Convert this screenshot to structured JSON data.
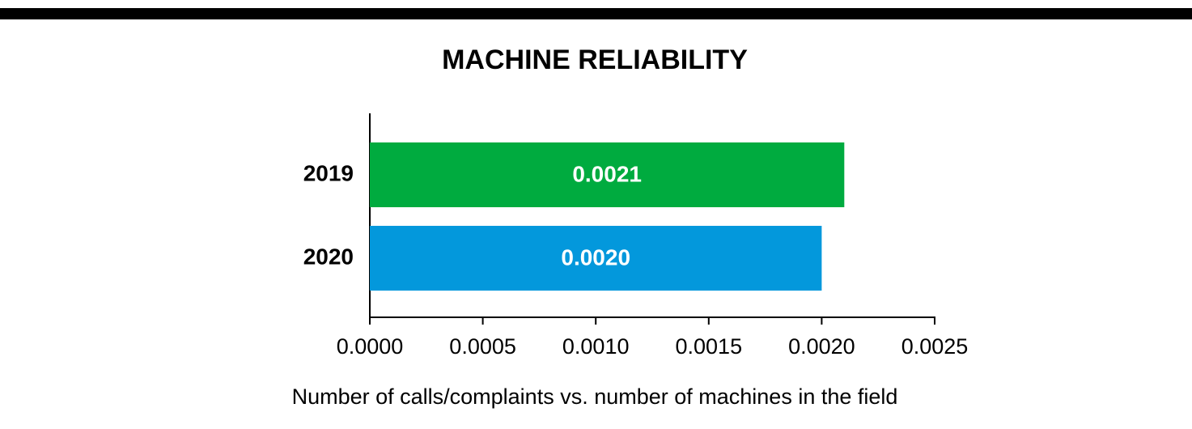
{
  "chart_data": {
    "type": "hbar",
    "title": "MACHINE RELIABILITY",
    "x_label": "Number of calls/complaints vs. number of machines in the field",
    "categories": [
      "2019",
      "2020"
    ],
    "values": [
      0.0021,
      0.002
    ],
    "value_labels": [
      "0.0021",
      "0.0020"
    ],
    "colors": [
      "#00ab3f",
      "#0398dc"
    ],
    "xlim": [
      0,
      0.0025
    ],
    "xticks": [
      {
        "value": 0,
        "label": "0.0000"
      },
      {
        "value": 0.0005,
        "label": "0.0005"
      },
      {
        "value": 0.001,
        "label": "0.0010"
      },
      {
        "value": 0.0015,
        "label": "0.0015"
      },
      {
        "value": 0.002,
        "label": "0.0020"
      },
      {
        "value": 0.0025,
        "label": "0.0025"
      }
    ],
    "grid": false
  }
}
